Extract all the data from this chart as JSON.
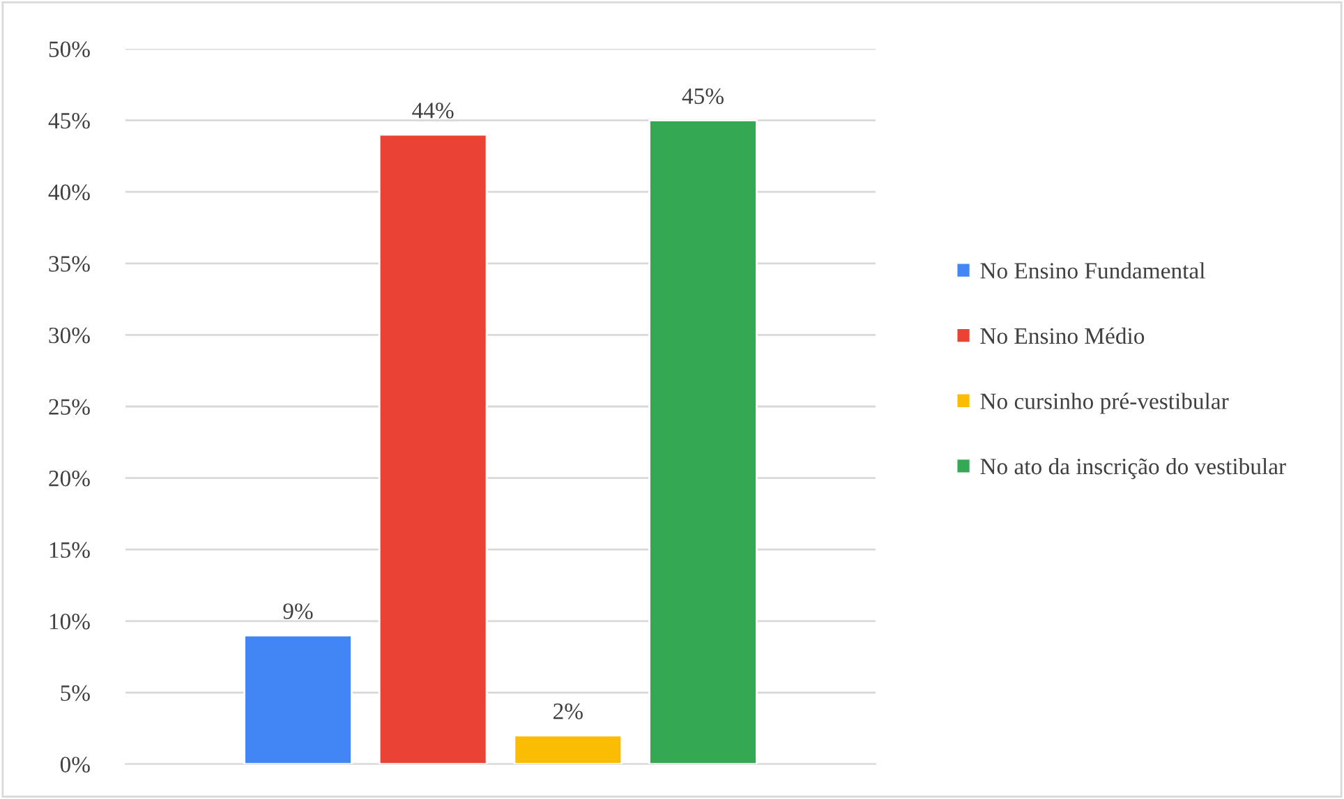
{
  "chart_data": {
    "type": "bar",
    "categories": [
      null
    ],
    "series": [
      {
        "name": "No Ensino Fundamental",
        "color": "#4285f4",
        "values": [
          9
        ],
        "value_labels": [
          "9%"
        ]
      },
      {
        "name": "No Ensino Médio",
        "color": "#ea4335",
        "values": [
          44
        ],
        "value_labels": [
          "44%"
        ]
      },
      {
        "name": "No cursinho pré-vestibular",
        "color": "#fbbc04",
        "values": [
          2
        ],
        "value_labels": [
          "2%"
        ]
      },
      {
        "name": "No ato da inscrição do vestibular",
        "color": "#34a853",
        "values": [
          45
        ],
        "value_labels": [
          "45%"
        ]
      }
    ],
    "ylim": [
      0,
      50
    ],
    "yticks": [
      {
        "value": 0,
        "label": "0%"
      },
      {
        "value": 5,
        "label": "5%"
      },
      {
        "value": 10,
        "label": "10%"
      },
      {
        "value": 15,
        "label": "15%"
      },
      {
        "value": 20,
        "label": "20%"
      },
      {
        "value": 25,
        "label": "25%"
      },
      {
        "value": 30,
        "label": "30%"
      },
      {
        "value": 35,
        "label": "35%"
      },
      {
        "value": 40,
        "label": "40%"
      },
      {
        "value": 45,
        "label": "45%"
      },
      {
        "value": 50,
        "label": "50%"
      }
    ],
    "grid": "y",
    "legend": "right"
  }
}
